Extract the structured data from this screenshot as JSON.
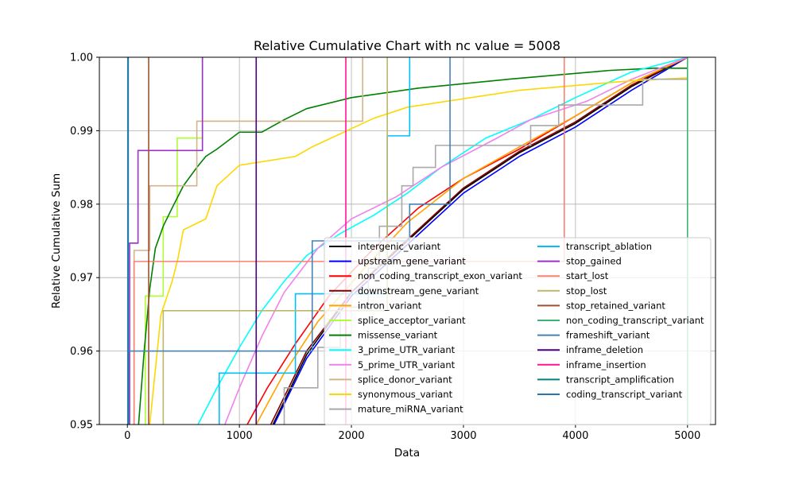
{
  "chart_data": {
    "type": "line",
    "title": "Relative Cumulative Chart with nc value = 5008",
    "xlabel": "Data",
    "ylabel": "Relative Cumulative Sum",
    "xlim": [
      -250,
      5250
    ],
    "ylim": [
      0.95,
      1.0
    ],
    "xticks": [
      0,
      1000,
      2000,
      3000,
      4000,
      5000
    ],
    "yticks": [
      0.95,
      0.96,
      0.97,
      0.98,
      0.99,
      1.0
    ],
    "xtick_labels": [
      "0",
      "1000",
      "2000",
      "3000",
      "4000",
      "5000"
    ],
    "ytick_labels": [
      "0.95",
      "0.96",
      "0.97",
      "0.98",
      "0.99",
      "1.00"
    ],
    "grid": true,
    "legend_position": "lower-right",
    "legend_columns": 2,
    "series": [
      {
        "name": "intergenic_variant",
        "color": "#000000",
        "step": false,
        "points": [
          [
            1300,
            0.95
          ],
          [
            1600,
            0.9595
          ],
          [
            2000,
            0.968
          ],
          [
            2500,
            0.975
          ],
          [
            3000,
            0.982
          ],
          [
            3500,
            0.987
          ],
          [
            4000,
            0.991
          ],
          [
            4500,
            0.996
          ],
          [
            5000,
            1.0
          ]
        ]
      },
      {
        "name": "upstream_gene_variant",
        "color": "#0000ff",
        "step": false,
        "points": [
          [
            1310,
            0.95
          ],
          [
            1600,
            0.959
          ],
          [
            2000,
            0.9675
          ],
          [
            2500,
            0.9745
          ],
          [
            3000,
            0.9815
          ],
          [
            3500,
            0.9865
          ],
          [
            4000,
            0.9905
          ],
          [
            4500,
            0.9955
          ],
          [
            5000,
            1.0
          ]
        ]
      },
      {
        "name": "non_coding_transcript_exon_variant",
        "color": "#ff0000",
        "step": false,
        "points": [
          [
            1070,
            0.95
          ],
          [
            1250,
            0.955
          ],
          [
            1500,
            0.961
          ],
          [
            1800,
            0.9675
          ],
          [
            2200,
            0.974
          ],
          [
            2600,
            0.9795
          ],
          [
            3000,
            0.9835
          ],
          [
            3500,
            0.9875
          ],
          [
            4000,
            0.992
          ],
          [
            4500,
            0.9965
          ],
          [
            5000,
            1.0
          ]
        ]
      },
      {
        "name": "downstream_gene_variant",
        "color": "#800000",
        "step": false,
        "points": [
          [
            1280,
            0.95
          ],
          [
            1600,
            0.96
          ],
          [
            2000,
            0.968
          ],
          [
            2500,
            0.9752
          ],
          [
            3000,
            0.9822
          ],
          [
            3500,
            0.9872
          ],
          [
            4000,
            0.9912
          ],
          [
            4500,
            0.9962
          ],
          [
            5000,
            1.0
          ]
        ]
      },
      {
        "name": "intron_variant",
        "color": "#ffa500",
        "step": false,
        "points": [
          [
            1150,
            0.95
          ],
          [
            1400,
            0.957
          ],
          [
            1700,
            0.964
          ],
          [
            2100,
            0.971
          ],
          [
            2500,
            0.9775
          ],
          [
            3000,
            0.9835
          ],
          [
            3500,
            0.9878
          ],
          [
            4000,
            0.992
          ],
          [
            4500,
            0.9965
          ],
          [
            5000,
            1.0
          ]
        ]
      },
      {
        "name": "splice_acceptor_variant",
        "color": "#adff2f",
        "step": true,
        "points": [
          [
            160,
            0.95
          ],
          [
            160,
            0.9675
          ],
          [
            320,
            0.9675
          ],
          [
            320,
            0.9783
          ],
          [
            445,
            0.9783
          ],
          [
            445,
            0.989
          ],
          [
            670,
            0.989
          ],
          [
            670,
            1.0
          ]
        ]
      },
      {
        "name": "missense_variant",
        "color": "#008000",
        "step": false,
        "points": [
          [
            100,
            0.95
          ],
          [
            150,
            0.96
          ],
          [
            200,
            0.9685
          ],
          [
            250,
            0.974
          ],
          [
            320,
            0.977
          ],
          [
            400,
            0.9795
          ],
          [
            500,
            0.9825
          ],
          [
            620,
            0.985
          ],
          [
            700,
            0.9865
          ],
          [
            800,
            0.9875
          ],
          [
            1000,
            0.9898
          ],
          [
            1200,
            0.9898
          ],
          [
            1400,
            0.9915
          ],
          [
            1600,
            0.993
          ],
          [
            2000,
            0.9945
          ],
          [
            2600,
            0.9958
          ],
          [
            3400,
            0.997
          ],
          [
            4300,
            0.9982
          ],
          [
            4700,
            0.9985
          ],
          [
            5000,
            0.9985
          ]
        ]
      },
      {
        "name": "3_prime_UTR_variant",
        "color": "#00ffff",
        "step": false,
        "points": [
          [
            630,
            0.95
          ],
          [
            800,
            0.955
          ],
          [
            1000,
            0.9605
          ],
          [
            1200,
            0.9655
          ],
          [
            1400,
            0.9695
          ],
          [
            1600,
            0.973
          ],
          [
            1900,
            0.976
          ],
          [
            2200,
            0.9785
          ],
          [
            2500,
            0.9815
          ],
          [
            2800,
            0.985
          ],
          [
            3200,
            0.989
          ],
          [
            3600,
            0.9915
          ],
          [
            4000,
            0.9945
          ],
          [
            4500,
            0.998
          ],
          [
            5000,
            1.0
          ]
        ]
      },
      {
        "name": "5_prime_UTR_variant",
        "color": "#ee82ee",
        "step": false,
        "points": [
          [
            870,
            0.95
          ],
          [
            1000,
            0.955
          ],
          [
            1200,
            0.962
          ],
          [
            1400,
            0.968
          ],
          [
            1700,
            0.974
          ],
          [
            2000,
            0.978
          ],
          [
            2400,
            0.981
          ],
          [
            2800,
            0.985
          ],
          [
            3300,
            0.989
          ],
          [
            3600,
            0.9915
          ],
          [
            4100,
            0.994
          ],
          [
            4500,
            0.997
          ],
          [
            5000,
            1.0
          ]
        ]
      },
      {
        "name": "splice_donor_variant",
        "color": "#d2b48c",
        "step": true,
        "points": [
          [
            60,
            0.95
          ],
          [
            60,
            0.9737
          ],
          [
            200,
            0.9737
          ],
          [
            200,
            0.9825
          ],
          [
            620,
            0.9825
          ],
          [
            620,
            0.9913
          ],
          [
            2100,
            0.9913
          ],
          [
            2100,
            1.0
          ]
        ]
      },
      {
        "name": "synonymous_variant",
        "color": "#ffd700",
        "step": false,
        "points": [
          [
            200,
            0.95
          ],
          [
            300,
            0.965
          ],
          [
            400,
            0.9695
          ],
          [
            450,
            0.9725
          ],
          [
            500,
            0.9765
          ],
          [
            700,
            0.978
          ],
          [
            800,
            0.9825
          ],
          [
            1000,
            0.9853
          ],
          [
            1500,
            0.9865
          ],
          [
            1650,
            0.9878
          ],
          [
            2200,
            0.9917
          ],
          [
            2500,
            0.9932
          ],
          [
            3500,
            0.9955
          ],
          [
            4500,
            0.9968
          ],
          [
            5000,
            0.9972
          ]
        ]
      },
      {
        "name": "mature_miRNA_variant",
        "color": "#a9a9a9",
        "step": true,
        "points": [
          [
            1400,
            0.95
          ],
          [
            1400,
            0.955
          ],
          [
            1700,
            0.955
          ],
          [
            1700,
            0.9605
          ],
          [
            1900,
            0.9605
          ],
          [
            1900,
            0.966
          ],
          [
            2150,
            0.966
          ],
          [
            2150,
            0.9713
          ],
          [
            2250,
            0.9713
          ],
          [
            2250,
            0.977
          ],
          [
            2450,
            0.977
          ],
          [
            2450,
            0.9825
          ],
          [
            2550,
            0.9825
          ],
          [
            2550,
            0.985
          ],
          [
            2750,
            0.985
          ],
          [
            2750,
            0.988
          ],
          [
            3600,
            0.988
          ],
          [
            3600,
            0.9907
          ],
          [
            3850,
            0.9907
          ],
          [
            3850,
            0.9935
          ],
          [
            4600,
            0.9935
          ],
          [
            4600,
            0.997
          ],
          [
            5000,
            0.997
          ]
        ]
      },
      {
        "name": "transcript_ablation",
        "color": "#00bfff",
        "step": true,
        "points": [
          [
            820,
            0.95
          ],
          [
            820,
            0.957
          ],
          [
            1500,
            0.957
          ],
          [
            1500,
            0.9678
          ],
          [
            2320,
            0.9678
          ],
          [
            2320,
            0.9893
          ],
          [
            2520,
            0.9893
          ],
          [
            2520,
            1.0
          ]
        ]
      },
      {
        "name": "stop_gained",
        "color": "#9932cc",
        "step": true,
        "points": [
          [
            20,
            0.95
          ],
          [
            20,
            0.9747
          ],
          [
            95,
            0.9747
          ],
          [
            95,
            0.9873
          ],
          [
            670,
            0.9873
          ],
          [
            670,
            1.0
          ]
        ]
      },
      {
        "name": "start_lost",
        "color": "#fa8072",
        "step": true,
        "points": [
          [
            60,
            0.95
          ],
          [
            60,
            0.9722
          ],
          [
            3900,
            0.9722
          ],
          [
            3900,
            1.0
          ]
        ]
      },
      {
        "name": "stop_lost",
        "color": "#bdb76b",
        "step": true,
        "points": [
          [
            320,
            0.95
          ],
          [
            320,
            0.9655
          ],
          [
            2320,
            0.9655
          ],
          [
            2320,
            1.0
          ]
        ]
      },
      {
        "name": "stop_retained_variant",
        "color": "#a0522d",
        "step": true,
        "points": [
          [
            190,
            0.95
          ],
          [
            190,
            1.0
          ]
        ]
      },
      {
        "name": "non_coding_transcript_variant",
        "color": "#3cb371",
        "step": true,
        "points": [
          [
            5000,
            0.95
          ],
          [
            5000,
            1.0
          ]
        ]
      },
      {
        "name": "frameshift_variant",
        "color": "#4682b4",
        "step": true,
        "points": [
          [
            10,
            0.95
          ],
          [
            10,
            0.96
          ],
          [
            1650,
            0.96
          ],
          [
            1650,
            0.975
          ],
          [
            2520,
            0.975
          ],
          [
            2520,
            0.98
          ],
          [
            2880,
            0.98
          ],
          [
            2880,
            1.0
          ]
        ]
      },
      {
        "name": "inframe_deletion",
        "color": "#4b0082",
        "step": true,
        "points": [
          [
            1150,
            0.95
          ],
          [
            1150,
            1.0
          ]
        ]
      },
      {
        "name": "inframe_insertion",
        "color": "#ff1493",
        "step": true,
        "points": [
          [
            1950,
            0.95
          ],
          [
            1950,
            1.0
          ]
        ]
      },
      {
        "name": "transcript_amplification",
        "color": "#008080",
        "step": true,
        "points": [
          [
            5,
            0.95
          ],
          [
            5,
            1.0
          ]
        ]
      },
      {
        "name": "coding_transcript_variant",
        "color": "#1f77b4",
        "step": true,
        "points": [
          [
            8,
            0.95
          ],
          [
            8,
            1.0
          ]
        ]
      }
    ]
  }
}
